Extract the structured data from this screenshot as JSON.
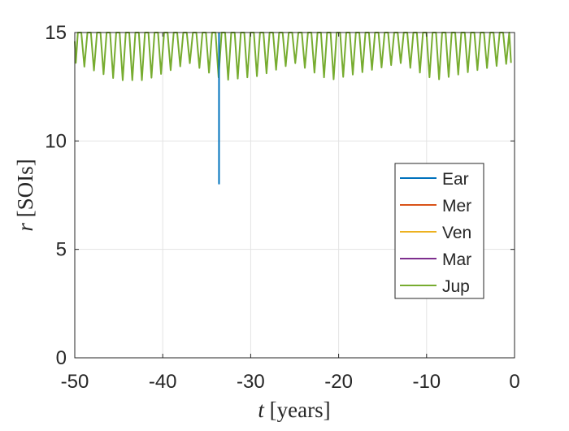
{
  "chart_data": {
    "type": "line",
    "title": "",
    "xlabel": {
      "var": "t",
      "unit": "[years]"
    },
    "ylabel": {
      "var": "r",
      "unit": "[SOIs]"
    },
    "xlim": [
      -50,
      0
    ],
    "ylim": [
      0,
      15
    ],
    "xticks": [
      -50,
      -40,
      -30,
      -20,
      -10,
      0
    ],
    "yticks": [
      0,
      5,
      10,
      15
    ],
    "xtick_labels": [
      "-50",
      "-40",
      "-30",
      "-20",
      "-10",
      "0"
    ],
    "ytick_labels": [
      "0",
      "5",
      "10",
      "15"
    ],
    "grid": true,
    "legend_position": "center-right",
    "series": [
      {
        "name": "Ear",
        "color": "#0072BD",
        "x": [
          -33.6,
          -33.6,
          -33.6,
          -33.6
        ],
        "y": [
          15,
          12.7,
          11,
          8.0
        ]
      },
      {
        "name": "Mer",
        "color": "#D95319",
        "x": [],
        "y": []
      },
      {
        "name": "Ven",
        "color": "#EDB120",
        "x": [],
        "y": []
      },
      {
        "name": "Mar",
        "color": "#7E2F8E",
        "x": [],
        "y": []
      },
      {
        "name": "Jup",
        "color": "#77AC30",
        "oscillation": {
          "x_start": -50,
          "x_end": -0.4,
          "period": 1.09,
          "peak": 15,
          "minima": [
            {
              "x": -50,
              "y": 13.6
            },
            {
              "x": -45,
              "y": 12.8
            },
            {
              "x": -42,
              "y": 12.8
            },
            {
              "x": -37,
              "y": 13.6
            },
            {
              "x": -33,
              "y": 12.8
            },
            {
              "x": -29,
              "y": 13.0
            },
            {
              "x": -25,
              "y": 13.6
            },
            {
              "x": -21,
              "y": 12.8
            },
            {
              "x": -17,
              "y": 13.2
            },
            {
              "x": -13,
              "y": 13.6
            },
            {
              "x": -9,
              "y": 12.8
            },
            {
              "x": -5,
              "y": 13.2
            },
            {
              "x": -0.4,
              "y": 13.6
            }
          ]
        }
      }
    ]
  }
}
